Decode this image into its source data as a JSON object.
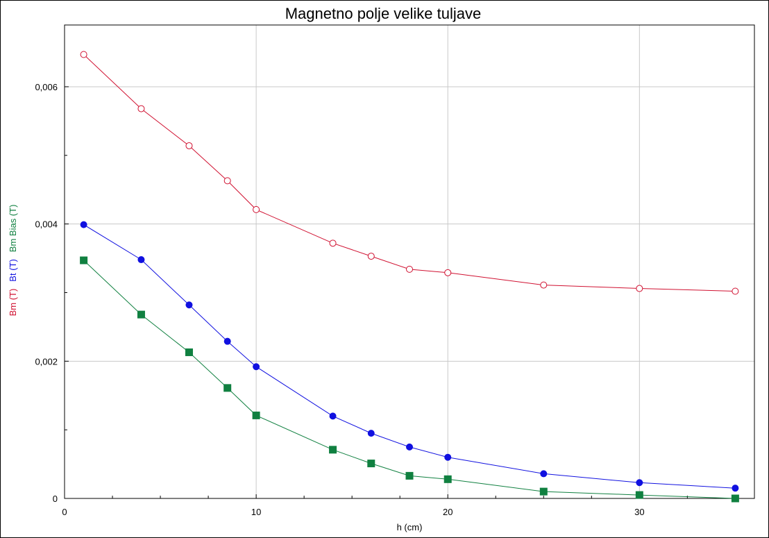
{
  "chart_data": {
    "type": "line",
    "title": "Magnetno polje velike tuljave",
    "xlabel": "h (cm)",
    "ylabels": [
      {
        "text": "Bm (T)",
        "color": "#d01030"
      },
      {
        "text": "Bt (T)",
        "color": "#1010e0"
      },
      {
        "text": "Bm Bias (T)",
        "color": "#108040"
      }
    ],
    "xlim": [
      0,
      36
    ],
    "ylim": [
      0,
      0.0069
    ],
    "x_ticks": [
      0,
      10,
      20,
      30
    ],
    "x_tick_labels": [
      "0",
      "10",
      "20",
      "30"
    ],
    "y_ticks": [
      0,
      0.002,
      0.004,
      0.006
    ],
    "y_tick_labels": [
      "0",
      "0,002",
      "0,004",
      "0,006"
    ],
    "grid": true,
    "series": [
      {
        "name": "Bm (T)",
        "color": "#d01030",
        "marker": "open-circle",
        "x": [
          1,
          4,
          6.5,
          8.5,
          10,
          14,
          16,
          18,
          20,
          25,
          30,
          35
        ],
        "y": [
          0.00647,
          0.00568,
          0.00514,
          0.00463,
          0.00421,
          0.00372,
          0.00353,
          0.00334,
          0.00329,
          0.00311,
          0.00306,
          0.00302
        ]
      },
      {
        "name": "Bt (T)",
        "color": "#1010e0",
        "marker": "filled-circle",
        "x": [
          1,
          4,
          6.5,
          8.5,
          10,
          14,
          16,
          18,
          20,
          25,
          30,
          35
        ],
        "y": [
          0.00399,
          0.00348,
          0.00282,
          0.00229,
          0.00192,
          0.0012,
          0.00095,
          0.00075,
          0.0006,
          0.00036,
          0.00023,
          0.00015
        ]
      },
      {
        "name": "Bm Bias (T)",
        "color": "#108040",
        "marker": "filled-square",
        "x": [
          1,
          4,
          6.5,
          8.5,
          10,
          14,
          16,
          18,
          20,
          25,
          30,
          35
        ],
        "y": [
          0.00347,
          0.00268,
          0.00213,
          0.00161,
          0.00121,
          0.00071,
          0.00051,
          0.00033,
          0.00028,
          0.0001,
          5e-05,
          0.0
        ]
      }
    ]
  }
}
